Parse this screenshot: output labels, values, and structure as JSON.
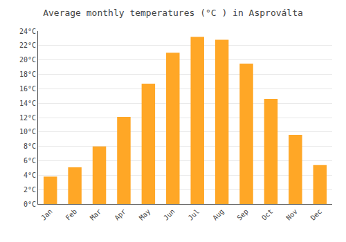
{
  "chart_data": {
    "type": "bar",
    "title": "Average monthly temperatures (°C ) in Asproválta",
    "categories": [
      "Jan",
      "Feb",
      "Mar",
      "Apr",
      "May",
      "Jun",
      "Jul",
      "Aug",
      "Sep",
      "Oct",
      "Nov",
      "Dec"
    ],
    "values": [
      3.8,
      5.1,
      8.0,
      12.1,
      16.7,
      21.0,
      23.2,
      22.8,
      19.5,
      14.6,
      9.6,
      5.4
    ],
    "color": "#FFA726",
    "ylim": [
      0,
      24
    ],
    "yticks": [
      {
        "value": 0,
        "label": "0°C"
      },
      {
        "value": 2,
        "label": "2°C"
      },
      {
        "value": 4,
        "label": "4°C"
      },
      {
        "value": 6,
        "label": "6°C"
      },
      {
        "value": 8,
        "label": "8°C"
      },
      {
        "value": 10,
        "label": "10°C"
      },
      {
        "value": 12,
        "label": "12°C"
      },
      {
        "value": 14,
        "label": "14°C"
      },
      {
        "value": 16,
        "label": "16°C"
      },
      {
        "value": 18,
        "label": "18°C"
      },
      {
        "value": 20,
        "label": "20°C"
      },
      {
        "value": 22,
        "label": "22°C"
      },
      {
        "value": 24,
        "label": "24°C"
      }
    ],
    "grid": true
  }
}
